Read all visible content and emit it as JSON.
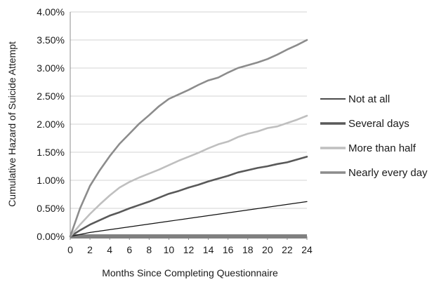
{
  "chart_data": {
    "type": "line",
    "title": "",
    "xlabel": "Months Since Completing Questionnaire",
    "ylabel": "Cumulative Hazard of Suicide Attempt",
    "xlim": [
      0,
      24
    ],
    "ylim": [
      0,
      0.04
    ],
    "x_ticks": [
      "0",
      "2",
      "4",
      "6",
      "8",
      "10",
      "12",
      "14",
      "16",
      "18",
      "20",
      "22",
      "24"
    ],
    "y_ticks": [
      "0.00%",
      "0.50%",
      "1.00%",
      "1.50%",
      "2.00%",
      "2.50%",
      "3.00%",
      "3.50%",
      "4.00%"
    ],
    "grid": "horizontal",
    "legend_position": "right",
    "series": [
      {
        "name": "Not at all",
        "color": "#111111",
        "x": [
          0,
          2,
          4,
          6,
          8,
          10,
          12,
          14,
          16,
          18,
          20,
          22,
          24
        ],
        "values": [
          0.0,
          0.0007,
          0.0012,
          0.0017,
          0.0022,
          0.0027,
          0.0032,
          0.0037,
          0.0042,
          0.0047,
          0.0052,
          0.0057,
          0.0062
        ]
      },
      {
        "name": "Several days",
        "color": "#595959",
        "x": [
          0,
          1,
          2,
          3,
          4,
          5,
          6,
          7,
          8,
          9,
          10,
          11,
          12,
          13,
          14,
          15,
          16,
          17,
          18,
          19,
          20,
          21,
          22,
          23,
          24
        ],
        "values": [
          0.0,
          0.0011,
          0.0021,
          0.0029,
          0.0037,
          0.0043,
          0.005,
          0.0056,
          0.0062,
          0.0069,
          0.0076,
          0.0081,
          0.0087,
          0.0092,
          0.0098,
          0.0103,
          0.0108,
          0.0114,
          0.0118,
          0.0122,
          0.0125,
          0.0129,
          0.0132,
          0.0137,
          0.0142
        ]
      },
      {
        "name": "More than half",
        "color": "#bfbfbf",
        "x": [
          0,
          1,
          2,
          3,
          4,
          5,
          6,
          7,
          8,
          9,
          10,
          11,
          12,
          13,
          14,
          15,
          16,
          17,
          18,
          19,
          20,
          21,
          22,
          23,
          24
        ],
        "values": [
          0.0,
          0.0021,
          0.004,
          0.0057,
          0.0073,
          0.0087,
          0.0097,
          0.0105,
          0.0112,
          0.0119,
          0.0127,
          0.0135,
          0.0142,
          0.0149,
          0.0157,
          0.0164,
          0.0169,
          0.0177,
          0.0183,
          0.0187,
          0.0193,
          0.0196,
          0.0202,
          0.0208,
          0.0215
        ]
      },
      {
        "name": "Nearly every day",
        "color": "#8c8c8c",
        "x": [
          0,
          1,
          2,
          3,
          4,
          5,
          6,
          7,
          8,
          9,
          10,
          11,
          12,
          13,
          14,
          15,
          16,
          17,
          18,
          19,
          20,
          21,
          22,
          23,
          24
        ],
        "values": [
          0.0,
          0.005,
          0.009,
          0.0118,
          0.0143,
          0.0165,
          0.0183,
          0.0201,
          0.0216,
          0.0232,
          0.0245,
          0.0253,
          0.0261,
          0.027,
          0.0278,
          0.0283,
          0.0292,
          0.03,
          0.0305,
          0.031,
          0.0316,
          0.0324,
          0.0333,
          0.0341,
          0.035
        ]
      }
    ]
  }
}
